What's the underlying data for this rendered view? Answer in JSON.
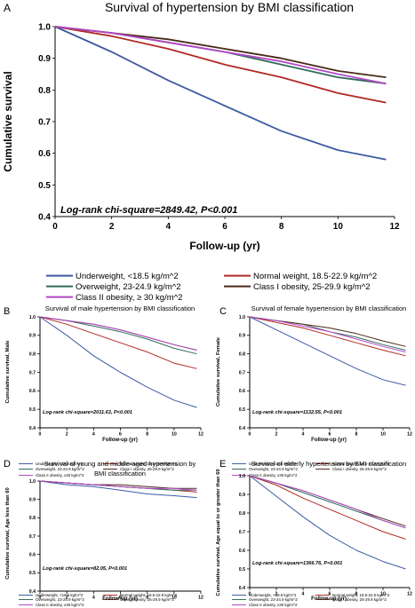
{
  "colors": {
    "Underweight": "#3b5aa3",
    "Normal": "#b02a24",
    "Overweight": "#2f6b5a",
    "ObesityI": "#4a2a18",
    "ObesityII": "#b446c8"
  },
  "legend_main": [
    {
      "key": "Underweight",
      "label": "Underweight, <18.5 kg/m^2"
    },
    {
      "key": "Normal",
      "label": "Normal weight, 18.5-22.9 kg/m^2"
    },
    {
      "key": "Overweight",
      "label": "Overweight, 23-24.9 kg/m^2"
    },
    {
      "key": "ObesityI",
      "label": "Class I obesity, 25-29.9 kg/m^2"
    },
    {
      "key": "ObesityII",
      "label": "Class II obesity,  ≥ 30 kg/m^2"
    }
  ],
  "legend_small": [
    {
      "key": "Underweight",
      "label": "Underweight, <18.5 kg/m^2"
    },
    {
      "key": "Normal",
      "label": "Normal weight, 18.5-22.9 kg/m^2"
    },
    {
      "key": "Overweight",
      "label": "Overweight, 23-24.9 kg/m^2"
    },
    {
      "key": "ObesityI",
      "label": "Class I obesity, 25-29.9 kg/m^2"
    },
    {
      "key": "ObesityII",
      "label": "Class II obesity, ≥30 kg/m^2"
    }
  ],
  "chart_data": [
    {
      "panel": "A",
      "type": "line",
      "title": "Survival of hypertension by BMI classification",
      "xlabel": "Follow-up (yr)",
      "ylabel": "Cumulative survival",
      "annotation": "Log-rank chi-square=2849.42, P<0.001",
      "xlim": [
        0,
        12
      ],
      "ylim": [
        0.4,
        1.0
      ],
      "xticks": [
        "0",
        "2",
        "4",
        "6",
        "8",
        "10",
        "12"
      ],
      "yticks": [
        "0.4",
        "0.5",
        "0.6",
        "0.7",
        "0.8",
        "0.9",
        "1.0"
      ],
      "x": [
        0,
        2,
        4,
        6,
        8,
        10,
        11.7
      ],
      "series": [
        {
          "key": "Underweight",
          "values": [
            1.0,
            0.92,
            0.83,
            0.75,
            0.67,
            0.61,
            0.58
          ]
        },
        {
          "key": "Normal",
          "values": [
            1.0,
            0.97,
            0.93,
            0.88,
            0.84,
            0.79,
            0.76
          ]
        },
        {
          "key": "Overweight",
          "values": [
            1.0,
            0.98,
            0.95,
            0.92,
            0.88,
            0.84,
            0.82
          ]
        },
        {
          "key": "ObesityI",
          "values": [
            1.0,
            0.98,
            0.96,
            0.93,
            0.9,
            0.86,
            0.84
          ]
        },
        {
          "key": "ObesityII",
          "values": [
            1.0,
            0.98,
            0.95,
            0.92,
            0.89,
            0.85,
            0.82
          ]
        }
      ]
    },
    {
      "panel": "B",
      "type": "line",
      "title": "Survival of male hypertension by BMI classification",
      "xlabel": "Follow-up (yr)",
      "ylabel": "Cumulative survival, Male",
      "annotation": "Log-rank chi-square=2011.63, P<0.001",
      "xlim": [
        0,
        12
      ],
      "ylim": [
        0.4,
        1.0
      ],
      "xticks": [
        "0",
        "2",
        "4",
        "6",
        "8",
        "10",
        "12"
      ],
      "yticks": [
        "0.4",
        "0.5",
        "0.6",
        "0.7",
        "0.8",
        "0.9",
        "1.0"
      ],
      "x": [
        0,
        2,
        4,
        6,
        8,
        10,
        11.7
      ],
      "series": [
        {
          "key": "Underweight",
          "values": [
            1.0,
            0.9,
            0.79,
            0.7,
            0.62,
            0.55,
            0.51
          ]
        },
        {
          "key": "Normal",
          "values": [
            1.0,
            0.96,
            0.91,
            0.86,
            0.81,
            0.75,
            0.72
          ]
        },
        {
          "key": "Overweight",
          "values": [
            1.0,
            0.98,
            0.95,
            0.92,
            0.88,
            0.83,
            0.8
          ]
        },
        {
          "key": "ObesityI",
          "values": [
            1.0,
            0.98,
            0.96,
            0.93,
            0.89,
            0.85,
            0.82
          ]
        },
        {
          "key": "ObesityII",
          "values": [
            1.0,
            0.98,
            0.96,
            0.93,
            0.89,
            0.85,
            0.82
          ]
        }
      ]
    },
    {
      "panel": "C",
      "type": "line",
      "title": "Survival of female hypertension by BMI classification",
      "xlabel": "Follow-up (yr)",
      "ylabel": "Cumulative survival, Female",
      "annotation": "Log-rank chi-square=1132.55, P<0.001",
      "xlim": [
        0,
        12
      ],
      "ylim": [
        0.4,
        1.0
      ],
      "xticks": [
        "0",
        "2",
        "4",
        "6",
        "8",
        "10",
        "12"
      ],
      "yticks": [
        "0.4",
        "0.5",
        "0.6",
        "0.7",
        "0.8",
        "0.9",
        "1.0"
      ],
      "x": [
        0,
        2,
        4,
        6,
        8,
        10,
        11.7
      ],
      "series": [
        {
          "key": "Underweight",
          "values": [
            1.0,
            0.93,
            0.86,
            0.79,
            0.72,
            0.66,
            0.63
          ]
        },
        {
          "key": "Normal",
          "values": [
            1.0,
            0.97,
            0.94,
            0.9,
            0.86,
            0.82,
            0.79
          ]
        },
        {
          "key": "Overweight",
          "values": [
            1.0,
            0.98,
            0.96,
            0.92,
            0.89,
            0.85,
            0.82
          ]
        },
        {
          "key": "ObesityI",
          "values": [
            1.0,
            0.98,
            0.96,
            0.94,
            0.91,
            0.87,
            0.84
          ]
        },
        {
          "key": "ObesityII",
          "values": [
            1.0,
            0.98,
            0.95,
            0.92,
            0.88,
            0.84,
            0.81
          ]
        }
      ]
    },
    {
      "panel": "D",
      "type": "line",
      "title": "Survival of young and middle-aged hypertension by BMI classification",
      "xlabel": "Follow-up (yr)",
      "ylabel": "Cumulative survival, Age less than 60",
      "annotation": "Log-rank chi-square=82.05, P<0.001",
      "xlim": [
        0,
        12
      ],
      "ylim": [
        0.4,
        1.0
      ],
      "xticks": [
        "0",
        "2",
        "4",
        "6",
        "8",
        "10",
        "12"
      ],
      "yticks": [
        "0.4",
        "0.5",
        "0.6",
        "0.7",
        "0.8",
        "0.9",
        "1.0"
      ],
      "x": [
        0,
        2,
        4,
        6,
        8,
        10,
        11.7
      ],
      "series": [
        {
          "key": "Underweight",
          "values": [
            1.0,
            0.98,
            0.97,
            0.95,
            0.93,
            0.92,
            0.91
          ]
        },
        {
          "key": "Normal",
          "values": [
            1.0,
            0.99,
            0.98,
            0.97,
            0.96,
            0.95,
            0.94
          ]
        },
        {
          "key": "Overweight",
          "values": [
            1.0,
            0.99,
            0.98,
            0.97,
            0.96,
            0.95,
            0.95
          ]
        },
        {
          "key": "ObesityI",
          "values": [
            1.0,
            0.99,
            0.98,
            0.98,
            0.97,
            0.96,
            0.96
          ]
        },
        {
          "key": "ObesityII",
          "values": [
            1.0,
            0.99,
            0.98,
            0.97,
            0.96,
            0.96,
            0.95
          ]
        }
      ]
    },
    {
      "panel": "E",
      "type": "line",
      "title": "Survival of elderly hypertension by BMI classification",
      "xlabel": "Follow-up (yr)",
      "ylabel": "Cumulative survival, Age equal to or greater than 60",
      "annotation": "Log-rank chi-square=1366.76, P<0.001",
      "xlim": [
        0,
        12
      ],
      "ylim": [
        0.4,
        1.0
      ],
      "xticks": [
        "0",
        "2",
        "4",
        "6",
        "8",
        "10",
        "12"
      ],
      "yticks": [
        "0.4",
        "0.5",
        "0.6",
        "0.7",
        "0.8",
        "0.9",
        "1.0"
      ],
      "x": [
        0,
        2,
        4,
        6,
        8,
        10,
        11.7
      ],
      "series": [
        {
          "key": "Underweight",
          "values": [
            1.0,
            0.89,
            0.78,
            0.68,
            0.6,
            0.54,
            0.5
          ]
        },
        {
          "key": "Normal",
          "values": [
            1.0,
            0.95,
            0.88,
            0.82,
            0.76,
            0.7,
            0.66
          ]
        },
        {
          "key": "Overweight",
          "values": [
            1.0,
            0.96,
            0.91,
            0.86,
            0.81,
            0.76,
            0.72
          ]
        },
        {
          "key": "ObesityI",
          "values": [
            1.0,
            0.96,
            0.92,
            0.87,
            0.82,
            0.77,
            0.73
          ]
        },
        {
          "key": "ObesityII",
          "values": [
            1.0,
            0.96,
            0.92,
            0.87,
            0.82,
            0.76,
            0.72
          ]
        }
      ]
    }
  ]
}
